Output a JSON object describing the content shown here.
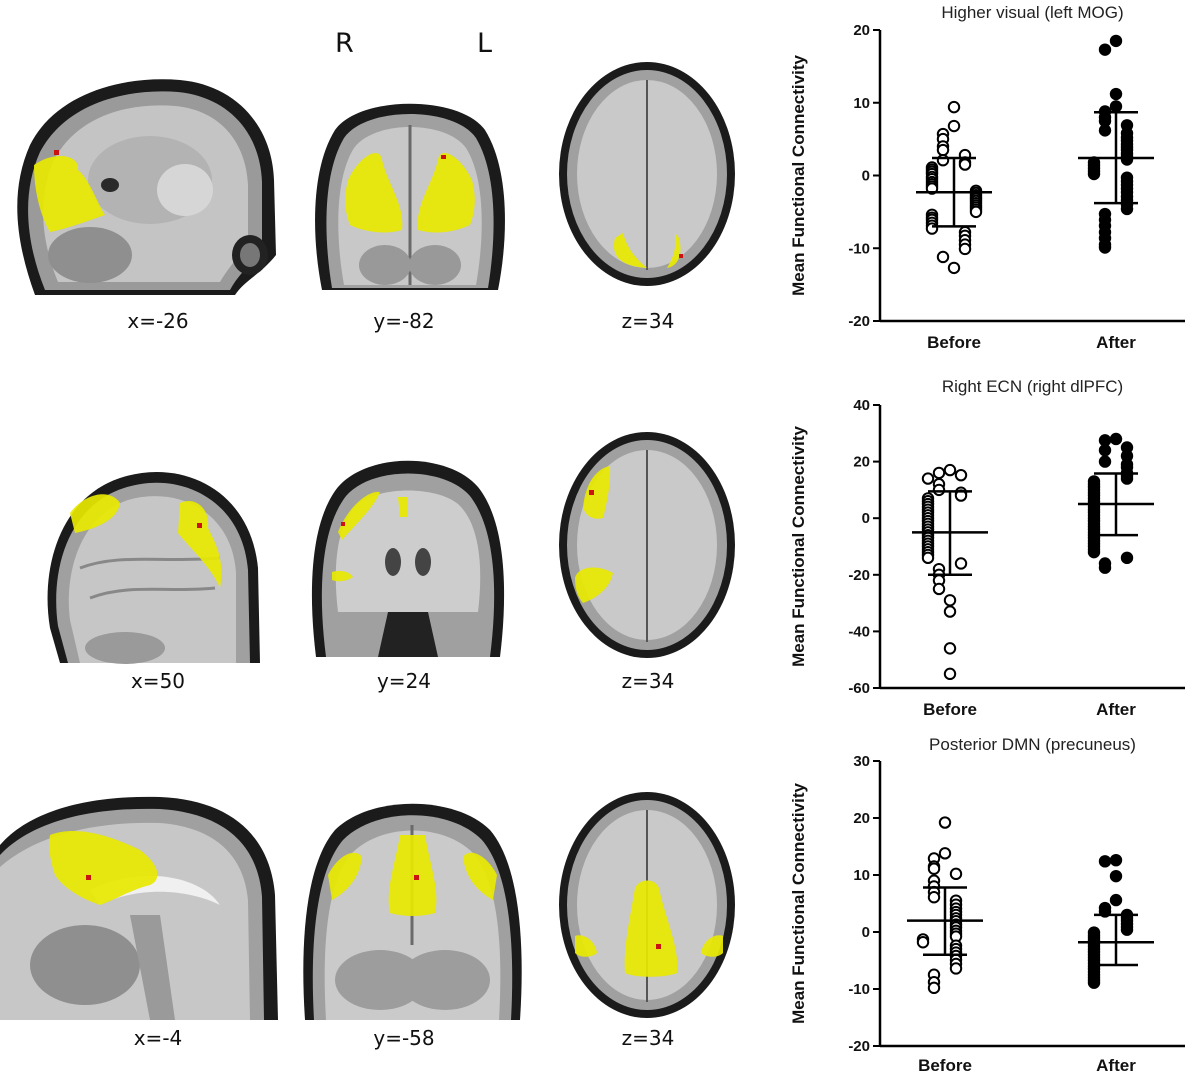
{
  "hemisphere": {
    "right": "R",
    "left": "L"
  },
  "rows": [
    {
      "coords": [
        "x=-26",
        "y=-82",
        "z=34"
      ]
    },
    {
      "coords": [
        "x=50",
        "y=24",
        "z=34"
      ]
    },
    {
      "coords": [
        "x=-4",
        "y=-58",
        "z=34"
      ]
    }
  ],
  "colors": {
    "cluster": "#e8e800",
    "peak": "#cc1111",
    "marker": "#000000",
    "open_fill": "#ffffff"
  },
  "chart_data": [
    {
      "type": "scatter",
      "title": "Higher visual (left MOG)",
      "ylabel": "Mean Functional Connectivity",
      "categories": [
        "Before",
        "After"
      ],
      "ylim": [
        -20,
        20
      ],
      "yticks": [
        20,
        10,
        0,
        -10,
        -20
      ],
      "series": [
        {
          "category": "Before",
          "marker": "open",
          "mean": -2.3,
          "sd_upper": 2.4,
          "sd_lower": -7.0,
          "values": [
            9.4,
            6.8,
            5.7,
            5.0,
            4.0,
            3.5,
            2.8,
            2.1,
            1.8,
            1.5,
            1.1,
            0.8,
            0.5,
            0.2,
            -0.2,
            -0.5,
            -0.9,
            -1.2,
            -1.5,
            -1.8,
            -2.1,
            -2.4,
            -2.7,
            -3.0,
            -3.2,
            -3.5,
            -3.8,
            -4.1,
            -4.4,
            -4.7,
            -5.0,
            -5.4,
            -5.8,
            -6.1,
            -6.5,
            -6.9,
            -7.3,
            -7.8,
            -8.3,
            -8.9,
            -9.5,
            -10.1,
            -11.2,
            -12.7
          ]
        },
        {
          "category": "After",
          "marker": "filled",
          "mean": 2.4,
          "sd_upper": 8.7,
          "sd_lower": -3.8,
          "values": [
            18.5,
            17.3,
            11.2,
            9.5,
            8.8,
            8.0,
            7.5,
            6.9,
            6.2,
            5.8,
            5.2,
            4.8,
            4.3,
            3.9,
            3.5,
            3.0,
            2.6,
            2.2,
            1.8,
            1.4,
            1.0,
            0.6,
            0.2,
            -0.3,
            -0.8,
            -1.3,
            -1.8,
            -2.3,
            -2.9,
            -3.4,
            -4.0,
            -4.6,
            -5.3,
            -6.1,
            -6.9,
            -7.8,
            -8.6,
            -9.5,
            -9.9
          ]
        }
      ]
    },
    {
      "type": "scatter",
      "title": "Right ECN (right dlPFC)",
      "ylabel": "Mean Functional Connectivity",
      "categories": [
        "Before",
        "After"
      ],
      "ylim": [
        -60,
        40
      ],
      "yticks": [
        40,
        20,
        0,
        -20,
        -40,
        -60
      ],
      "series": [
        {
          "category": "Before",
          "marker": "open",
          "mean": -5.0,
          "sd_upper": 9.5,
          "sd_lower": -20.0,
          "values": [
            17,
            16,
            15.2,
            14,
            12,
            10,
            9,
            8,
            7,
            6,
            5,
            4,
            3,
            2,
            1,
            0,
            -1,
            -2,
            -3,
            -4,
            -5,
            -6,
            -7,
            -8,
            -9,
            -10,
            -11,
            -12,
            -13,
            -14,
            -16,
            -18,
            -20,
            -22,
            -25,
            -29,
            -33,
            -46,
            -55
          ]
        },
        {
          "category": "After",
          "marker": "filled",
          "mean": 5.0,
          "sd_upper": 15.8,
          "sd_lower": -6.0,
          "values": [
            28,
            27.5,
            25,
            24,
            22,
            20,
            19,
            18,
            16,
            15,
            14,
            13,
            12,
            11,
            10,
            9,
            8,
            7,
            6,
            5,
            4,
            3,
            2,
            1,
            0,
            -1,
            -2,
            -3,
            -4,
            -5,
            -6,
            -7,
            -8,
            -9,
            -10,
            -11,
            -12,
            -14,
            -16,
            -17.5
          ]
        }
      ]
    },
    {
      "type": "scatter",
      "title": "Posterior DMN (precuneus)",
      "ylabel": "Mean Functional Connectivity",
      "categories": [
        "Before",
        "After"
      ],
      "ylim": [
        -20,
        30
      ],
      "yticks": [
        30,
        20,
        10,
        0,
        -10,
        -20
      ],
      "series": [
        {
          "category": "Before",
          "marker": "open",
          "mean": 2.0,
          "sd_upper": 7.8,
          "sd_lower": -4.0,
          "values": [
            19.2,
            13.8,
            12.9,
            11.5,
            11.1,
            10.2,
            9.0,
            8.0,
            7.0,
            6.1,
            5.5,
            4.8,
            4.1,
            3.5,
            3.0,
            2.4,
            1.9,
            1.3,
            0.8,
            0.2,
            -0.3,
            -0.8,
            -1.3,
            -1.8,
            -2.4,
            -3.0,
            -3.6,
            -4.2,
            -4.9,
            -5.6,
            -6.4,
            -7.5,
            -8.8,
            -9.8
          ]
        },
        {
          "category": "After",
          "marker": "filled",
          "mean": -1.8,
          "sd_upper": 3.0,
          "sd_lower": -5.8,
          "values": [
            12.6,
            12.4,
            9.8,
            5.6,
            4.2,
            3.6,
            3.0,
            2.5,
            2.0,
            1.4,
            0.9,
            0.4,
            -0.1,
            -0.6,
            -1.0,
            -1.5,
            -2.0,
            -2.5,
            -3.0,
            -3.5,
            -4.0,
            -4.5,
            -5.0,
            -5.5,
            -6.0,
            -6.5,
            -7.0,
            -7.5,
            -8.0,
            -8.5,
            -8.9
          ]
        }
      ]
    }
  ]
}
